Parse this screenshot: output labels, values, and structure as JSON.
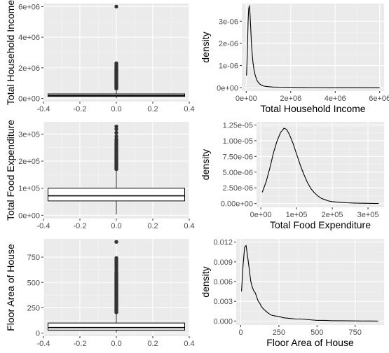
{
  "colors": {
    "panel_background": "#ebebeb",
    "grid_major": "#ffffff",
    "grid_minor": "#f5f5f5",
    "data_ink": "#000000",
    "outlier": "#333333",
    "tick_text": "#4d4d4d"
  },
  "chart_data": [
    {
      "type": "box",
      "xlabel": "",
      "ylabel": "Total Household Income",
      "xlim": [
        -0.4,
        0.4
      ],
      "ylim": [
        -200000,
        6200000
      ],
      "x_ticks": [
        "-0.4",
        "-0.2",
        "0.0",
        "0.2",
        "0.4"
      ],
      "x_tick_values": [
        -0.4,
        -0.2,
        0.0,
        0.2,
        0.4
      ],
      "y_ticks": [
        "0e+00",
        "2e+06",
        "4e+06",
        "6e+06"
      ],
      "y_tick_values": [
        0,
        2000000,
        4000000,
        6000000
      ],
      "box": {
        "x": 0,
        "half_width": 0.375,
        "q1": 140000,
        "median": 200000,
        "q3": 300000,
        "whisker_low": 12000,
        "whisker_high": 620000
      },
      "outliers": [
        650000,
        680000,
        720000,
        760000,
        800000,
        850000,
        900000,
        950000,
        1000000,
        1050000,
        1100000,
        1150000,
        1200000,
        1250000,
        1300000,
        1350000,
        1400000,
        1450000,
        1500000,
        1550000,
        1600000,
        1650000,
        1700000,
        1750000,
        1800000,
        1850000,
        1900000,
        1950000,
        2000000,
        2050000,
        2100000,
        2200000,
        2300000,
        6000000
      ]
    },
    {
      "type": "line",
      "xlabel": "Total Household Income",
      "ylabel": "density",
      "xlim": [
        -200000,
        6200000
      ],
      "ylim": [
        -1.5e-07,
        3.8e-06
      ],
      "x_ticks": [
        "0e+00",
        "2e+06",
        "4e+06",
        "6e+06"
      ],
      "x_tick_values": [
        0,
        2000000,
        4000000,
        6000000
      ],
      "y_ticks": [
        "0e+00",
        "1e-06",
        "2e-06",
        "3e-06"
      ],
      "y_tick_values": [
        0,
        1e-06,
        2e-06,
        3e-06
      ],
      "x": [
        10000,
        50000,
        80000,
        110000,
        140000,
        170000,
        200000,
        230000,
        260000,
        300000,
        350000,
        400000,
        450000,
        500000,
        600000,
        700000,
        800000,
        1000000,
        1200000,
        1500000,
        2000000,
        2500000,
        3000000,
        4000000,
        5000000,
        6000000
      ],
      "y": [
        5.5e-07,
        1.6e-06,
        2.9e-06,
        3.55e-06,
        3.7e-06,
        3.35e-06,
        2.7e-06,
        2.1e-06,
        1.6e-06,
        1.15e-06,
        8e-07,
        5.8e-07,
        4.2e-07,
        3e-07,
        1.7e-07,
        1.1e-07,
        7e-08,
        4.5e-08,
        3e-08,
        2.5e-08,
        2e-08,
        1.2e-08,
        8e-09,
        3e-09,
        1e-09,
        0
      ]
    },
    {
      "type": "box",
      "xlabel": "",
      "ylabel": "Total Food Expenditure",
      "xlim": [
        -0.4,
        0.4
      ],
      "ylim": [
        -12000,
        345000
      ],
      "x_ticks": [
        "-0.4",
        "-0.2",
        "0.0",
        "0.2",
        "0.4"
      ],
      "x_tick_values": [
        -0.4,
        -0.2,
        0.0,
        0.2,
        0.4
      ],
      "y_ticks": [
        "0e+00",
        "1e+05",
        "2e+05",
        "3e+05"
      ],
      "y_tick_values": [
        0,
        100000,
        200000,
        300000
      ],
      "box": {
        "x": 0,
        "half_width": 0.375,
        "q1": 53000,
        "median": 72000,
        "q3": 100000,
        "whisker_low": 3000,
        "whisker_high": 168000
      },
      "outliers": [
        170000,
        174000,
        178000,
        182000,
        186000,
        190000,
        194000,
        198000,
        202000,
        206000,
        210000,
        214000,
        218000,
        222000,
        226000,
        230000,
        234000,
        238000,
        242000,
        246000,
        250000,
        256000,
        262000,
        268000,
        275000,
        282000,
        292000,
        305000,
        318000,
        328000
      ]
    },
    {
      "type": "line",
      "xlabel": "Total Food Expenditure",
      "ylabel": "density",
      "xlim": [
        -12000,
        345000
      ],
      "ylim": [
        -6e-07,
        1.3e-05
      ],
      "x_ticks": [
        "0e+00",
        "1e+05",
        "2e+05",
        "3e+05"
      ],
      "x_tick_values": [
        0,
        100000,
        200000,
        300000
      ],
      "y_ticks": [
        "0.00e+00",
        "2.50e-06",
        "5.00e-06",
        "7.50e-06",
        "1.00e-05",
        "1.25e-05"
      ],
      "y_tick_values": [
        0,
        2.5e-06,
        5e-06,
        7.5e-06,
        1e-05,
        1.25e-05
      ],
      "x": [
        4000,
        15000,
        25000,
        35000,
        45000,
        55000,
        65000,
        72000,
        80000,
        90000,
        100000,
        110000,
        120000,
        130000,
        140000,
        150000,
        160000,
        170000,
        180000,
        190000,
        200000,
        220000,
        240000,
        260000,
        280000,
        300000,
        320000,
        330000
      ],
      "y": [
        1.8e-06,
        3.5e-06,
        5.6e-06,
        8e-06,
        9.9e-06,
        1.13e-05,
        1.2e-05,
        1.18e-05,
        1.1e-05,
        9.6e-06,
        7.9e-06,
        6.2e-06,
        4.7e-06,
        3.4e-06,
        2.4e-06,
        1.7e-06,
        1.2e-06,
        8e-07,
        6e-07,
        4e-07,
        3e-07,
        2e-07,
        1.2e-07,
        8e-08,
        5e-08,
        3e-08,
        1.5e-08,
        1e-08
      ]
    },
    {
      "type": "box",
      "xlabel": "",
      "ylabel": "Floor Area of House",
      "xlim": [
        -0.4,
        0.4
      ],
      "ylim": [
        -30,
        930
      ],
      "x_ticks": [
        "-0.4",
        "-0.2",
        "0.0",
        "0.2",
        "0.4"
      ],
      "x_tick_values": [
        -0.4,
        -0.2,
        0.0,
        0.2,
        0.4
      ],
      "y_ticks": [
        "0",
        "250",
        "500",
        "750"
      ],
      "y_tick_values": [
        0,
        250,
        500,
        750
      ],
      "box": {
        "x": 0,
        "half_width": 0.375,
        "q1": 30,
        "median": 55,
        "q3": 100,
        "whisker_low": 5,
        "whisker_high": 200
      },
      "outliers": [
        205,
        210,
        220,
        230,
        240,
        250,
        260,
        270,
        280,
        290,
        300,
        310,
        320,
        330,
        340,
        350,
        360,
        370,
        380,
        390,
        400,
        410,
        420,
        430,
        440,
        450,
        460,
        470,
        480,
        490,
        500,
        510,
        520,
        530,
        540,
        550,
        560,
        570,
        580,
        590,
        600,
        620,
        640,
        660,
        680,
        700,
        720,
        740,
        900
      ]
    },
    {
      "type": "line",
      "xlabel": "Floor Area of House",
      "ylabel": "density",
      "xlim": [
        -30,
        940
      ],
      "ylim": [
        -0.0006,
        0.0125
      ],
      "x_ticks": [
        "0",
        "250",
        "500",
        "750"
      ],
      "x_tick_values": [
        0,
        250,
        500,
        750
      ],
      "y_ticks": [
        "0.000",
        "0.003",
        "0.006",
        "0.009",
        "0.012"
      ],
      "y_tick_values": [
        0,
        0.003,
        0.006,
        0.009,
        0.012
      ],
      "x": [
        5,
        15,
        25,
        35,
        45,
        55,
        65,
        75,
        85,
        95,
        105,
        115,
        125,
        135,
        150,
        165,
        180,
        200,
        220,
        250,
        280,
        320,
        360,
        400,
        450,
        500,
        550,
        600,
        650,
        700,
        750,
        800,
        850,
        900
      ],
      "y": [
        0.0045,
        0.0085,
        0.0112,
        0.0115,
        0.0098,
        0.008,
        0.0061,
        0.0052,
        0.0046,
        0.0043,
        0.0036,
        0.003,
        0.0027,
        0.0022,
        0.0018,
        0.0015,
        0.0012,
        0.0009,
        0.0008,
        0.0007,
        0.0005,
        0.0004,
        0.0003,
        0.0003,
        0.0002,
        0.0001,
        0.0001,
        5e-05,
        5e-05,
        3e-05,
        2e-05,
        1e-05,
        5e-06,
        0
      ]
    }
  ]
}
